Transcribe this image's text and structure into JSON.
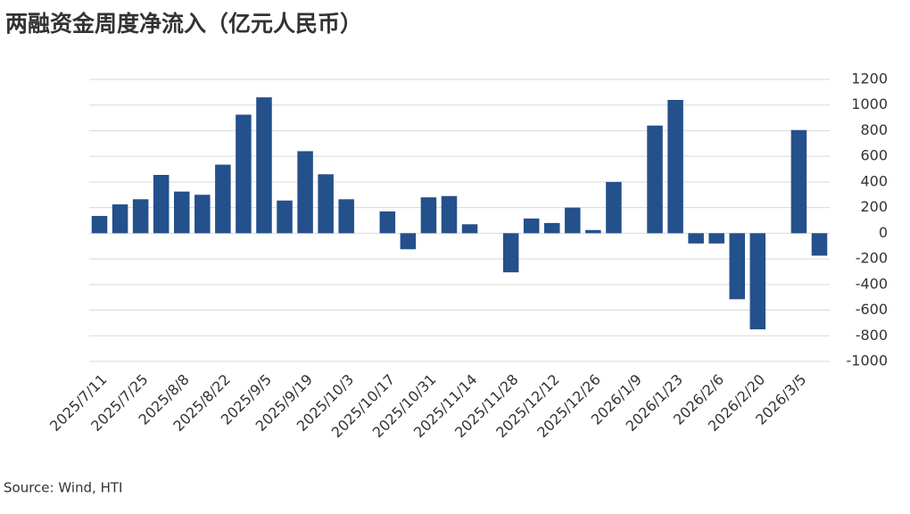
{
  "chart_data": {
    "type": "bar",
    "title": "两融资金周度净流入（亿元人民币）",
    "source": "Source: Wind, HTI",
    "categories": [
      "2025/7/11",
      null,
      "2025/7/25",
      null,
      "2025/8/8",
      null,
      "2025/8/22",
      null,
      "2025/9/5",
      null,
      "2025/9/19",
      null,
      "2025/10/3",
      null,
      "2025/10/17",
      null,
      "2025/10/31",
      null,
      "2025/11/14",
      null,
      "2025/11/28",
      null,
      "2025/12/12",
      null,
      "2025/12/26",
      null,
      "2026/1/9",
      null,
      "2026/1/23",
      null,
      "2026/2/6",
      null,
      "2026/2/20",
      null,
      "2026/3/5",
      null
    ],
    "values": [
      135,
      225,
      265,
      455,
      325,
      300,
      535,
      925,
      1060,
      255,
      640,
      460,
      265,
      null,
      170,
      -125,
      280,
      290,
      70,
      null,
      -305,
      115,
      80,
      200,
      25,
      400,
      null,
      840,
      1040,
      -80,
      -80,
      -515,
      -750,
      null,
      805,
      -175
    ],
    "color": "#24508c",
    "ylim": [
      -1000,
      1200
    ],
    "yticks": [
      -1000,
      -800,
      -600,
      -400,
      -200,
      0,
      200,
      400,
      600,
      800,
      1000,
      1200
    ],
    "grid": true
  }
}
